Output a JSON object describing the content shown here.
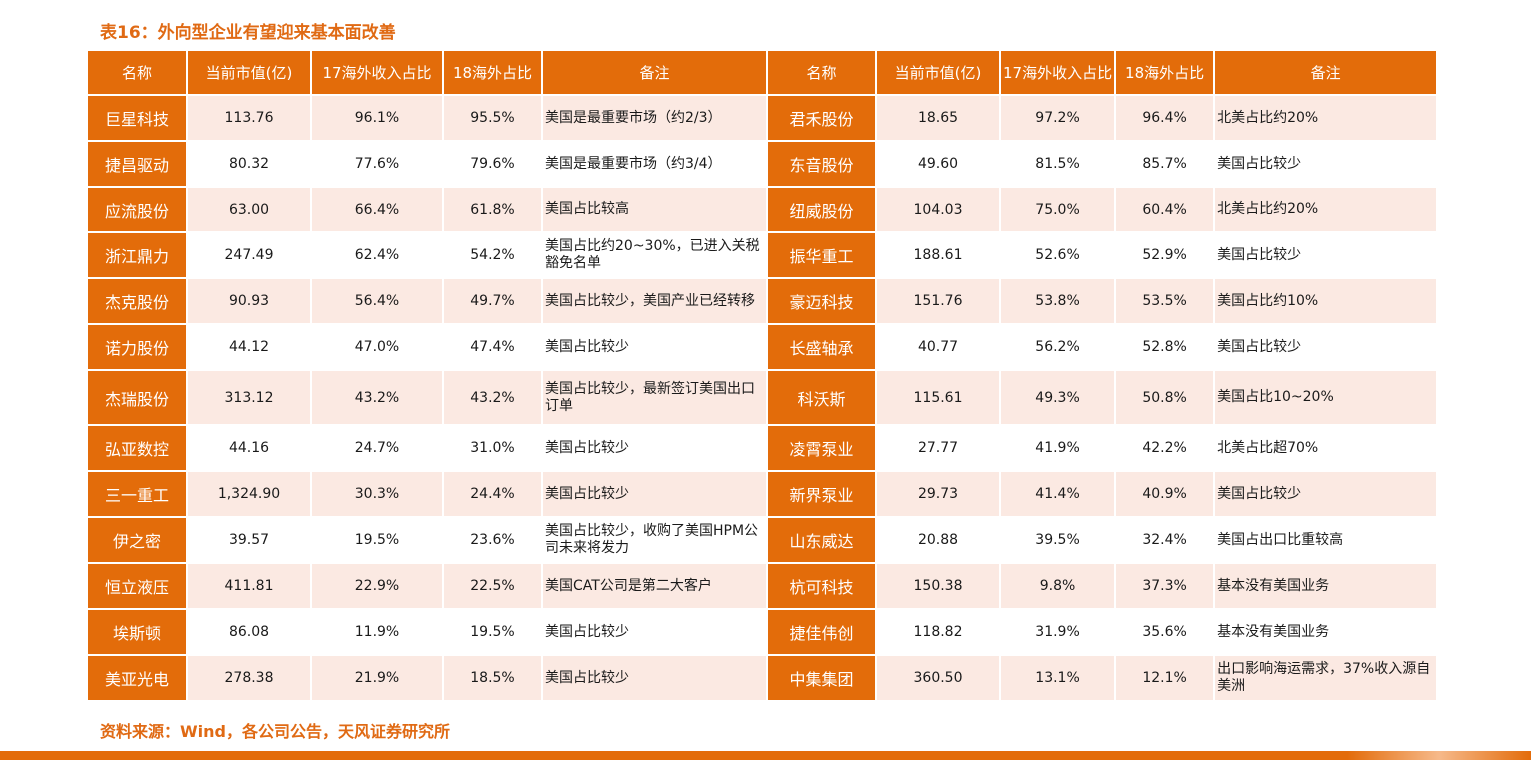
{
  "title": "表16：外向型企业有望迎来基本面改善",
  "source": "资料来源：Wind，各公司公告，天风证券研究所",
  "headers": [
    "名称",
    "当前市值(亿)",
    "17海外收入占比",
    "18海外占比",
    "备注",
    "名称",
    "当前市值(亿)",
    "17海外收入占比",
    "18海外占比",
    "备注"
  ],
  "rows": [
    {
      "left": {
        "name": "巨星科技",
        "cap": "113.76",
        "r17": "96.1%",
        "r18": "95.5%",
        "note": "美国是最重要市场（约2/3）"
      },
      "right": {
        "name": "君禾股份",
        "cap": "18.65",
        "r17": "97.2%",
        "r18": "96.4%",
        "note": "北美占比约20%"
      }
    },
    {
      "left": {
        "name": "捷昌驱动",
        "cap": "80.32",
        "r17": "77.6%",
        "r18": "79.6%",
        "note": "美国是最重要市场（约3/4）"
      },
      "right": {
        "name": "东音股份",
        "cap": "49.60",
        "r17": "81.5%",
        "r18": "85.7%",
        "note": "美国占比较少"
      }
    },
    {
      "left": {
        "name": "应流股份",
        "cap": "63.00",
        "r17": "66.4%",
        "r18": "61.8%",
        "note": "美国占比较高"
      },
      "right": {
        "name": "纽威股份",
        "cap": "104.03",
        "r17": "75.0%",
        "r18": "60.4%",
        "note": "北美占比约20%"
      }
    },
    {
      "left": {
        "name": "浙江鼎力",
        "cap": "247.49",
        "r17": "62.4%",
        "r18": "54.2%",
        "note": "美国占比约20~30%，已进入关税豁免名单"
      },
      "right": {
        "name": "振华重工",
        "cap": "188.61",
        "r17": "52.6%",
        "r18": "52.9%",
        "note": "美国占比较少"
      }
    },
    {
      "left": {
        "name": "杰克股份",
        "cap": "90.93",
        "r17": "56.4%",
        "r18": "49.7%",
        "note": "美国占比较少，美国产业已经转移"
      },
      "right": {
        "name": "豪迈科技",
        "cap": "151.76",
        "r17": "53.8%",
        "r18": "53.5%",
        "note": "美国占比约10%"
      }
    },
    {
      "left": {
        "name": "诺力股份",
        "cap": "44.12",
        "r17": "47.0%",
        "r18": "47.4%",
        "note": "美国占比较少"
      },
      "right": {
        "name": "长盛轴承",
        "cap": "40.77",
        "r17": "56.2%",
        "r18": "52.8%",
        "note": "美国占比较少"
      }
    },
    {
      "left": {
        "name": "杰瑞股份",
        "cap": "313.12",
        "r17": "43.2%",
        "r18": "43.2%",
        "note": "美国占比较少，最新签订美国出口订单"
      },
      "right": {
        "name": "科沃斯",
        "cap": "115.61",
        "r17": "49.3%",
        "r18": "50.8%",
        "note": "美国占比10~20%"
      }
    },
    {
      "left": {
        "name": "弘亚数控",
        "cap": "44.16",
        "r17": "24.7%",
        "r18": "31.0%",
        "note": "美国占比较少"
      },
      "right": {
        "name": "凌霄泵业",
        "cap": "27.77",
        "r17": "41.9%",
        "r18": "42.2%",
        "note": "北美占比超70%"
      }
    },
    {
      "left": {
        "name": "三一重工",
        "cap": "1,324.90",
        "r17": "30.3%",
        "r18": "24.4%",
        "note": "美国占比较少"
      },
      "right": {
        "name": "新界泵业",
        "cap": "29.73",
        "r17": "41.4%",
        "r18": "40.9%",
        "note": "美国占比较少"
      }
    },
    {
      "left": {
        "name": "伊之密",
        "cap": "39.57",
        "r17": "19.5%",
        "r18": "23.6%",
        "note": "美国占比较少，收购了美国HPM公司未来将发力"
      },
      "right": {
        "name": "山东威达",
        "cap": "20.88",
        "r17": "39.5%",
        "r18": "32.4%",
        "note": "美国占出口比重较高"
      }
    },
    {
      "left": {
        "name": "恒立液压",
        "cap": "411.81",
        "r17": "22.9%",
        "r18": "22.5%",
        "note": "美国CAT公司是第二大客户"
      },
      "right": {
        "name": "杭可科技",
        "cap": "150.38",
        "r17": "9.8%",
        "r18": "37.3%",
        "note": "基本没有美国业务"
      }
    },
    {
      "left": {
        "name": "埃斯顿",
        "cap": "86.08",
        "r17": "11.9%",
        "r18": "19.5%",
        "note": "美国占比较少"
      },
      "right": {
        "name": "捷佳伟创",
        "cap": "118.82",
        "r17": "31.9%",
        "r18": "35.6%",
        "note": "基本没有美国业务"
      }
    },
    {
      "left": {
        "name": "美亚光电",
        "cap": "278.38",
        "r17": "21.9%",
        "r18": "18.5%",
        "note": "美国占比较少"
      },
      "right": {
        "name": "中集集团",
        "cap": "360.50",
        "r17": "13.1%",
        "r18": "12.1%",
        "note": "出口影响海运需求，37%收入源自美洲"
      }
    }
  ]
}
